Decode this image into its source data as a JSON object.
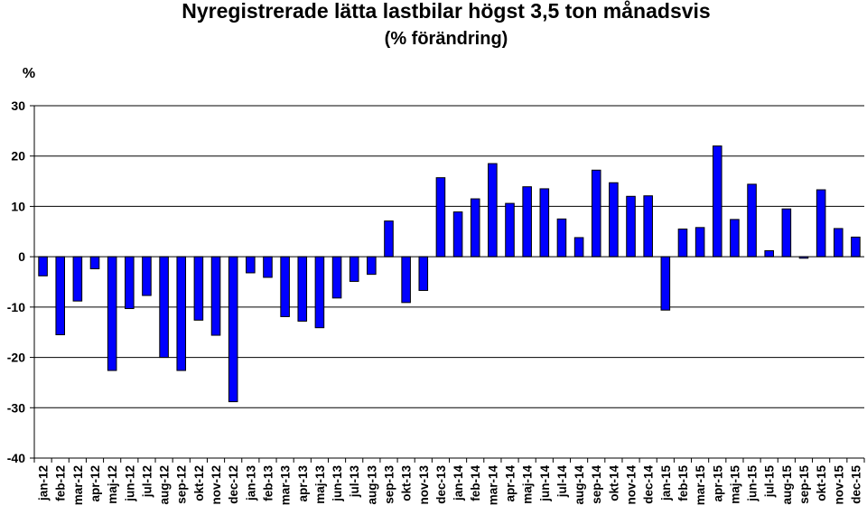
{
  "chart_data": {
    "type": "bar",
    "title": "Nyregistrerade lätta lastbilar högst 3,5 ton månadsvis",
    "subtitle": "(% förändring)",
    "ylabel": "%",
    "xlabel": "",
    "ylim": [
      -40,
      30
    ],
    "yticks": [
      30,
      20,
      10,
      0,
      -10,
      -20,
      -30,
      -40
    ],
    "grid": true,
    "legend": "none",
    "bar_color": "#0000ff",
    "bar_edge_color": "#000000",
    "categories": [
      "jan-12",
      "feb-12",
      "mar-12",
      "apr-12",
      "maj-12",
      "jun-12",
      "jul-12",
      "aug-12",
      "sep-12",
      "okt-12",
      "nov-12",
      "dec-12",
      "jan-13",
      "feb-13",
      "mar-13",
      "apr-13",
      "maj-13",
      "jun-13",
      "jul-13",
      "aug-13",
      "sep-13",
      "okt-13",
      "nov-13",
      "dec-13",
      "jan-14",
      "feb-14",
      "mar-14",
      "apr-14",
      "maj-14",
      "jun-14",
      "jul-14",
      "aug-14",
      "sep-14",
      "okt-14",
      "nov-14",
      "dec-14",
      "jan-15",
      "feb-15",
      "mar-15",
      "apr-15",
      "maj-15",
      "jun-15",
      "jul-15",
      "aug-15",
      "sep-15",
      "okt-15",
      "nov-15",
      "dec-15"
    ],
    "values": [
      -3.8,
      -15.5,
      -8.8,
      -2.4,
      -22.6,
      -10.3,
      -7.7,
      -20.0,
      -22.6,
      -12.6,
      -15.6,
      -28.8,
      -3.2,
      -4.1,
      -11.9,
      -12.8,
      -14.1,
      -8.2,
      -4.9,
      -3.5,
      7.1,
      -9.1,
      -6.7,
      15.7,
      8.9,
      11.5,
      18.5,
      10.6,
      13.9,
      13.5,
      7.5,
      3.8,
      17.2,
      14.7,
      12.0,
      12.1,
      -10.6,
      5.5,
      5.8,
      22.0,
      7.4,
      14.4,
      1.2,
      9.5,
      -0.3,
      13.3,
      5.6,
      3.9
    ]
  }
}
